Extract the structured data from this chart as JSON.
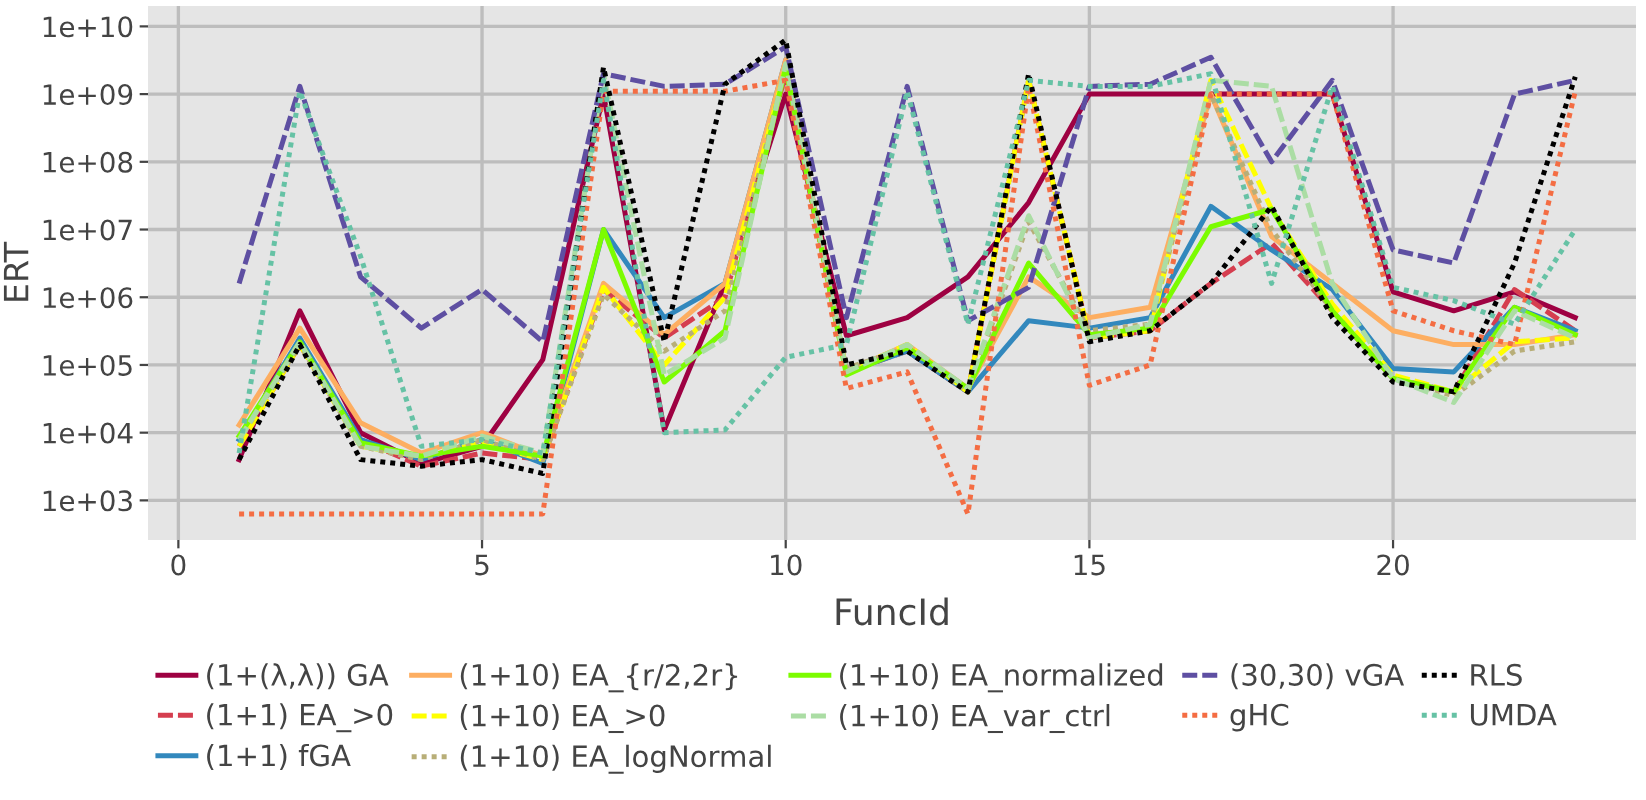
{
  "chart_data": {
    "type": "line",
    "xlabel": "FuncId",
    "ylabel": "ERT",
    "log": "y",
    "grid": true,
    "legend": "bottom",
    "marker": "none",
    "x": [
      1,
      2,
      3,
      4,
      5,
      6,
      7,
      8,
      9,
      10,
      11,
      12,
      13,
      14,
      15,
      16,
      17,
      18,
      19,
      20,
      21,
      22,
      23
    ],
    "xlim": [
      -0.5,
      24
    ],
    "xticks": [
      0,
      5,
      10,
      15,
      20
    ],
    "ylim": [
      260,
      20000000000
    ],
    "yticks": [
      {
        "value": 1000,
        "label": "1e+03"
      },
      {
        "value": 10000,
        "label": "1e+04"
      },
      {
        "value": 100000,
        "label": "1e+05"
      },
      {
        "value": 1000000,
        "label": "1e+06"
      },
      {
        "value": 10000000,
        "label": "1e+07"
      },
      {
        "value": 100000000,
        "label": "1e+08"
      },
      {
        "value": 1000000000,
        "label": "1e+09"
      },
      {
        "value": 10000000000,
        "label": "1e+10"
      }
    ],
    "series": [
      {
        "name": "(1+(λ,λ)) GA",
        "color": "#9e0142",
        "line_style": "solid",
        "values": [
          4000,
          630000,
          10000,
          3500,
          6300,
          120000,
          1000000000,
          11000,
          1600000,
          1000000000,
          270000,
          500000,
          2000000,
          25000000,
          1000000000,
          1000000000,
          1000000000,
          1000000000,
          1000000000,
          1200000,
          630000,
          1200000,
          500000
        ]
      },
      {
        "name": "(1+1) EA_>0",
        "color": "#d53e4f",
        "line_style": "dashed",
        "values": [
          6300,
          200000,
          7900,
          3200,
          5000,
          4000,
          1300000,
          250000,
          1000000,
          2000000000,
          79000,
          160000,
          40000,
          1600000000,
          250000,
          320000,
          1600000,
          6300000,
          630000,
          63000,
          40000,
          1300000,
          320000
        ]
      },
      {
        "name": "(1+1) fGA",
        "color": "#3288bd",
        "line_style": "solid",
        "values": [
          7900,
          250000,
          7900,
          4000,
          7900,
          3500,
          10000000,
          500000,
          1600000,
          3200000000,
          79000,
          160000,
          40000,
          450000,
          350000,
          500000,
          22000000,
          5000000,
          1300000,
          89000,
          79000,
          710000,
          320000
        ]
      },
      {
        "name": "(1+10) EA_{r/2,2r}",
        "color": "#fdae61",
        "line_style": "solid",
        "values": [
          13000,
          350000,
          14000,
          5000,
          10000,
          4500,
          1600000,
          280000,
          1600000,
          3200000000,
          79000,
          200000,
          45000,
          2000000,
          500000,
          710000,
          1000000000,
          7900000,
          1600000,
          320000,
          200000,
          200000,
          280000
        ]
      },
      {
        "name": "(1+10) EA_>0",
        "color": "#ffff00",
        "line_style": "dashed",
        "values": [
          6300,
          200000,
          6300,
          4500,
          7100,
          4000,
          1400000,
          100000,
          1000000,
          2500000000,
          79000,
          200000,
          40000,
          1600000000,
          250000,
          320000,
          1600000000,
          20000000,
          790000,
          71000,
          40000,
          220000,
          250000
        ]
      },
      {
        "name": "(1+10) EA_logNormal",
        "color": "#b8ae78",
        "line_style": "dotted",
        "values": [
          7900,
          200000,
          6300,
          4000,
          7900,
          4000,
          1100000,
          160000,
          630000,
          2500000000,
          89000,
          180000,
          40000,
          13000000,
          320000,
          400000,
          1000000000,
          10000000,
          630000,
          63000,
          35000,
          160000,
          220000
        ]
      },
      {
        "name": "(1+10) EA_normalized",
        "color": "#7cfc00",
        "line_style": "solid",
        "values": [
          8900,
          220000,
          7100,
          4500,
          6300,
          4500,
          10000000,
          56000,
          320000,
          2500000000,
          71000,
          180000,
          45000,
          3200000,
          280000,
          350000,
          11000000,
          20000000,
          630000,
          63000,
          40000,
          710000,
          280000
        ]
      },
      {
        "name": "(1+10) EA_var_ctrl",
        "color": "#abdda4",
        "line_style": "dashed",
        "values": [
          7900,
          220000,
          6300,
          4500,
          8900,
          5000,
          2000000000,
          71000,
          250000,
          2800000000,
          79000,
          200000,
          45000,
          16000000,
          250000,
          400000,
          1600000000,
          1300000000,
          1600000,
          63000,
          28000,
          630000,
          250000
        ]
      },
      {
        "name": "(30,30) vGA",
        "color": "#5e4fa2",
        "line_style": "dashed",
        "values": [
          1600000,
          1300000000,
          2000000,
          350000,
          1300000,
          220000,
          2000000000,
          1300000000,
          1400000000,
          5000000000,
          500000,
          1300000000,
          450000,
          1400000,
          1300000000,
          1400000000,
          3500000000,
          100000000,
          1600000000,
          5000000,
          3200000,
          1000000000,
          1600000000
        ]
      },
      {
        "name": "gHC",
        "color": "#f46d43",
        "line_style": "dotted",
        "values": [
          630,
          630,
          630,
          630,
          630,
          630,
          1100000000,
          1100000000,
          1100000000,
          1600000000,
          45000,
          79000,
          630,
          1300000000,
          50000,
          100000,
          1000000000,
          1000000000,
          1000000000,
          630000,
          320000,
          200000,
          1100000000
        ]
      },
      {
        "name": "RLS",
        "color": "#000000",
        "line_style": "dotted",
        "values": [
          4000,
          200000,
          4000,
          3200,
          4000,
          2500,
          2500000000,
          220000,
          1400000000,
          6300000000,
          100000,
          160000,
          40000,
          2000000000,
          220000,
          320000,
          1600000,
          22000000,
          500000,
          56000,
          40000,
          3200000,
          1800000000
        ]
      },
      {
        "name": "UMDA",
        "color": "#66c2a5",
        "line_style": "dotted",
        "values": [
          5000,
          1100000000,
          4000000,
          6300,
          7900,
          5000,
          1600000000,
          10000,
          11000,
          130000,
          200000,
          1100000000,
          400000,
          1600000000,
          1300000000,
          1300000000,
          2000000000,
          1600000,
          1300000000,
          1400000,
          890000,
          400000,
          10000000
        ]
      }
    ]
  }
}
